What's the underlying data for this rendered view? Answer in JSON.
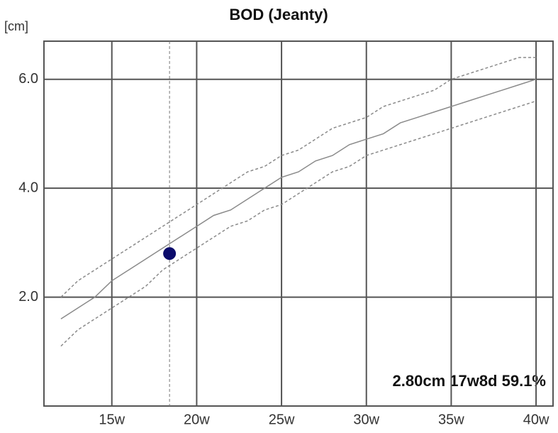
{
  "chart_data": {
    "type": "line",
    "title": "BOD (Jeanty)",
    "y_label": "[cm]",
    "annotation": "2.80cm 17w8d 59.1%",
    "x": [
      12,
      13,
      14,
      15,
      16,
      17,
      18,
      19,
      20,
      21,
      22,
      23,
      24,
      25,
      26,
      27,
      28,
      29,
      30,
      31,
      32,
      33,
      34,
      35,
      36,
      37,
      38,
      39,
      40
    ],
    "series": [
      {
        "color": "#8a8a8a",
        "dashed": false,
        "values": [
          1.6,
          1.8,
          2.0,
          2.3,
          2.5,
          2.7,
          2.9,
          3.1,
          3.3,
          3.5,
          3.6,
          3.8,
          4.0,
          4.2,
          4.3,
          4.5,
          4.6,
          4.8,
          4.9,
          5.0,
          5.2,
          5.3,
          5.4,
          5.5,
          5.6,
          5.7,
          5.8,
          5.9,
          6.0
        ]
      },
      {
        "color": "#8a8a8a",
        "dashed": true,
        "values": [
          2.0,
          2.3,
          2.5,
          2.7,
          2.9,
          3.1,
          3.3,
          3.5,
          3.7,
          3.9,
          4.1,
          4.3,
          4.4,
          4.6,
          4.7,
          4.9,
          5.1,
          5.2,
          5.3,
          5.5,
          5.6,
          5.7,
          5.8,
          6.0,
          6.1,
          6.2,
          6.3,
          6.4,
          6.4
        ]
      },
      {
        "color": "#8a8a8a",
        "dashed": true,
        "values": [
          1.1,
          1.4,
          1.6,
          1.8,
          2.0,
          2.2,
          2.5,
          2.7,
          2.9,
          3.1,
          3.3,
          3.4,
          3.6,
          3.7,
          3.9,
          4.1,
          4.3,
          4.4,
          4.6,
          4.7,
          4.8,
          4.9,
          5.0,
          5.1,
          5.2,
          5.3,
          5.4,
          5.5,
          5.6
        ]
      }
    ],
    "marker": {
      "x": 18.4,
      "y": 2.8,
      "color": "#0b0b6b"
    },
    "xlim": [
      11,
      41
    ],
    "ylim": [
      0,
      6.7
    ],
    "xticks": [
      {
        "value": 15,
        "label": "15w"
      },
      {
        "value": 20,
        "label": "20w"
      },
      {
        "value": 25,
        "label": "25w"
      },
      {
        "value": 30,
        "label": "30w"
      },
      {
        "value": 35,
        "label": "35w"
      },
      {
        "value": 40,
        "label": "40w"
      }
    ],
    "yticks": [
      {
        "value": 2,
        "label": "2.0"
      },
      {
        "value": 4,
        "label": "4.0"
      },
      {
        "value": 6,
        "label": "6.0"
      }
    ],
    "grid": true
  }
}
